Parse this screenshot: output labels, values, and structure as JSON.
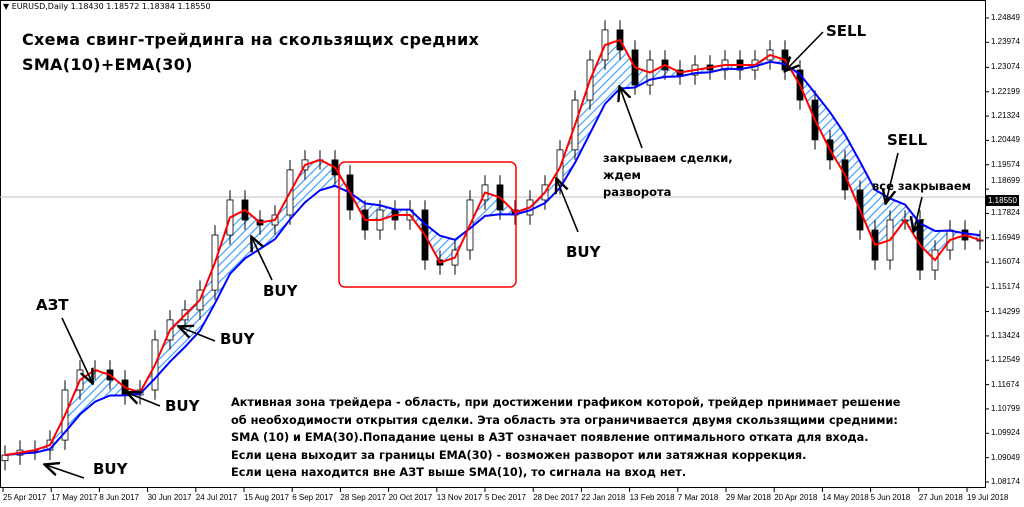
{
  "header": {
    "symbol": "EURUSD,Daily",
    "ohlc": "1.18430 1.18572 1.18384 1.18550",
    "menu_icon": "triangle-down-icon"
  },
  "title": {
    "line1": "Схема свинг-трейдинга на скользящих средних",
    "line2": "SMA(10)+EMA(30)"
  },
  "annotations": {
    "azt": "АЗТ",
    "buy": "BUY",
    "sell": "SELL",
    "close_line1": "закрываем сделки,",
    "close_line2": "ждем",
    "close_line3": "разворота",
    "close_all": "все закрываем"
  },
  "description": [
    "Активная зона трейдера - область, при достижении графиком которой, трейдер принимает решение",
    "об необходимости открытия сделки. Эта область эта ограничивается двумя скользящими средними:",
    "SMA (10) и EMA(30).Попадание цены в АЗТ означает появление оптимального отката для входа.",
    "Если цена выходит за границы EMA(30) - возможен разворот или затяжная коррекция.",
    "Если цена находится вне АЗТ выше SMA(10), то сигнала на вход нет."
  ],
  "colors": {
    "sma": "#ff0000",
    "ema": "#0000ff",
    "zone_hatch": "#3399ff",
    "box": "#ff0000",
    "bid_line": "#c0c0c0"
  },
  "chart_data": {
    "type": "candlestick",
    "symbol": "EURUSD",
    "timeframe": "Daily",
    "ylim": [
      1.08174,
      1.24849
    ],
    "yticks": [
      "1.24849",
      "1.23974",
      "1.23074",
      "1.22199",
      "1.21324",
      "1.20449",
      "1.19574",
      "1.18699",
      "1.17824",
      "1.16949",
      "1.16074",
      "1.15174",
      "1.14299",
      "1.13424",
      "1.12549",
      "1.11674",
      "1.10799",
      "1.09924",
      "1.09049",
      "1.08174"
    ],
    "xticks": [
      "25 Apr 2017",
      "17 May 2017",
      "8 Jun 2017",
      "30 Jun 2017",
      "24 Jul 2017",
      "15 Aug 2017",
      "6 Sep 2017",
      "28 Sep 2017",
      "20 Oct 2017",
      "13 Nov 2017",
      "5 Dec 2017",
      "28 Dec 2017",
      "22 Jan 2018",
      "13 Feb 2018",
      "7 Mar 2018",
      "29 Mar 2018",
      "20 Apr 2018",
      "14 May 2018",
      "5 Jun 2018",
      "27 Jun 2018",
      "19 Jul 2018"
    ],
    "bid": "1.18550",
    "close": [
      1.0914,
      1.0932,
      1.0932,
      1.0968,
      1.1148,
      1.122,
      1.122,
      1.1184,
      1.113,
      1.1148,
      1.1328,
      1.14,
      1.1436,
      1.1507,
      1.1705,
      1.1831,
      1.1759,
      1.1741,
      1.1777,
      1.1939,
      1.1975,
      1.1975,
      1.1921,
      1.1795,
      1.1723,
      1.1795,
      1.1759,
      1.1795,
      1.1615,
      1.1597,
      1.1651,
      1.1831,
      1.1885,
      1.1795,
      1.1777,
      1.1831,
      1.1885,
      1.2011,
      1.219,
      1.2334,
      1.2442,
      1.237,
      1.2244,
      1.2334,
      1.2298,
      1.228,
      1.2316,
      1.2298,
      1.2334,
      1.2298,
      1.2334,
      1.237,
      1.2298,
      1.219,
      1.2047,
      1.1975,
      1.1867,
      1.1723,
      1.1615,
      1.1759,
      1.1759,
      1.1579,
      1.1651,
      1.1723,
      1.1687,
      1.1687
    ],
    "indicators": [
      {
        "name": "SMA(10)",
        "color": "#ff0000"
      },
      {
        "name": "EMA(30)",
        "color": "#0000ff"
      }
    ]
  }
}
